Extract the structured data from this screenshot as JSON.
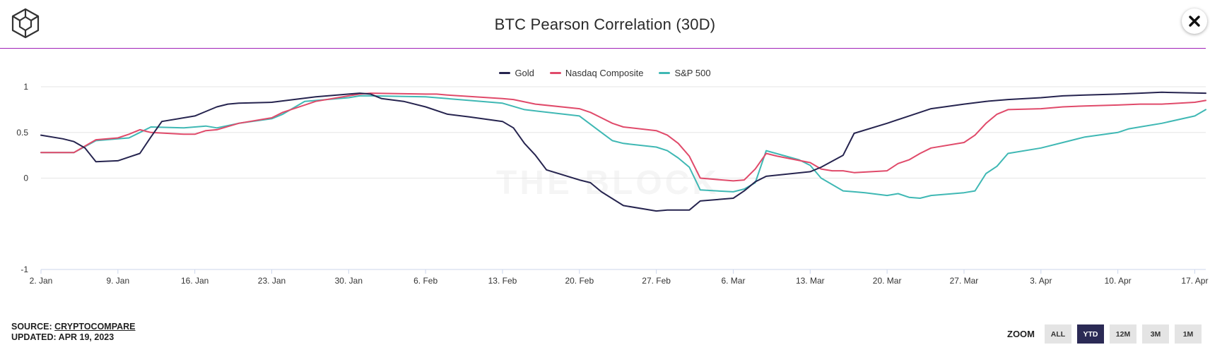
{
  "header": {
    "title": "BTC Pearson Correlation (30D)",
    "rule_color": "#a020b8"
  },
  "icons": {
    "logo": "the-block-cube-logo",
    "close": "close-x-icon"
  },
  "watermark": "THE BLOCK",
  "footer": {
    "source_label": "SOURCE:",
    "source_link": "CRYPTOCOMPARE",
    "updated": "UPDATED: APR 19, 2023"
  },
  "zoom": {
    "label": "ZOOM",
    "buttons": [
      "ALL",
      "YTD",
      "12M",
      "3M",
      "1M"
    ],
    "active": "YTD"
  },
  "chart_data": {
    "type": "line",
    "title": "BTC Pearson Correlation (30D)",
    "ylim": [
      -1,
      1
    ],
    "yticks": [
      1,
      0.5,
      0,
      -1
    ],
    "ytick_labels": [
      "1",
      "0.5",
      "0",
      "-1"
    ],
    "xlim": [
      "2023-01-02",
      "2023-04-18"
    ],
    "xticks": [
      "2023-01-02",
      "2023-01-09",
      "2023-01-16",
      "2023-01-23",
      "2023-01-30",
      "2023-02-06",
      "2023-02-13",
      "2023-02-20",
      "2023-02-27",
      "2023-03-06",
      "2023-03-13",
      "2023-03-20",
      "2023-03-27",
      "2023-04-03",
      "2023-04-10",
      "2023-04-17"
    ],
    "xtick_labels": [
      "2. Jan",
      "9. Jan",
      "16. Jan",
      "23. Jan",
      "30. Jan",
      "6. Feb",
      "13. Feb",
      "20. Feb",
      "27. Feb",
      "6. Mar",
      "13. Mar",
      "20. Mar",
      "27. Mar",
      "3. Apr",
      "10. Apr",
      "17. Apr"
    ],
    "legend_position": "top-center",
    "grid": "horizontal",
    "series": [
      {
        "name": "Gold",
        "color": "#26244f",
        "x": [
          "2023-01-02",
          "2023-01-04",
          "2023-01-05",
          "2023-01-06",
          "2023-01-07",
          "2023-01-09",
          "2023-01-10",
          "2023-01-11",
          "2023-01-12",
          "2023-01-13",
          "2023-01-16",
          "2023-01-17",
          "2023-01-18",
          "2023-01-19",
          "2023-01-20",
          "2023-01-23",
          "2023-01-25",
          "2023-01-27",
          "2023-01-30",
          "2023-01-31",
          "2023-02-01",
          "2023-02-02",
          "2023-02-04",
          "2023-02-06",
          "2023-02-08",
          "2023-02-10",
          "2023-02-13",
          "2023-02-14",
          "2023-02-15",
          "2023-02-16",
          "2023-02-17",
          "2023-02-20",
          "2023-02-21",
          "2023-02-22",
          "2023-02-24",
          "2023-02-27",
          "2023-02-28",
          "2023-03-02",
          "2023-03-03",
          "2023-03-06",
          "2023-03-07",
          "2023-03-08",
          "2023-03-09",
          "2023-03-13",
          "2023-03-14",
          "2023-03-16",
          "2023-03-17",
          "2023-03-20",
          "2023-03-22",
          "2023-03-24",
          "2023-03-27",
          "2023-03-29",
          "2023-03-31",
          "2023-04-03",
          "2023-04-05",
          "2023-04-07",
          "2023-04-10",
          "2023-04-12",
          "2023-04-14",
          "2023-04-18"
        ],
        "y": [
          0.47,
          0.43,
          0.4,
          0.33,
          0.18,
          0.19,
          0.23,
          0.27,
          0.45,
          0.62,
          0.68,
          0.73,
          0.78,
          0.81,
          0.82,
          0.83,
          0.86,
          0.89,
          0.92,
          0.93,
          0.92,
          0.87,
          0.84,
          0.78,
          0.7,
          0.67,
          0.62,
          0.55,
          0.38,
          0.25,
          0.09,
          -0.02,
          -0.05,
          -0.15,
          -0.3,
          -0.36,
          -0.35,
          -0.35,
          -0.25,
          -0.22,
          -0.14,
          -0.04,
          0.02,
          0.07,
          0.12,
          0.25,
          0.49,
          0.6,
          0.68,
          0.76,
          0.81,
          0.84,
          0.86,
          0.88,
          0.9,
          0.91,
          0.92,
          0.93,
          0.94,
          0.93
        ]
      },
      {
        "name": "Nasdaq Composite",
        "color": "#e04a6a",
        "x": [
          "2023-01-02",
          "2023-01-05",
          "2023-01-07",
          "2023-01-09",
          "2023-01-10",
          "2023-01-11",
          "2023-01-12",
          "2023-01-15",
          "2023-01-16",
          "2023-01-17",
          "2023-01-18",
          "2023-01-20",
          "2023-01-23",
          "2023-01-24",
          "2023-01-27",
          "2023-01-30",
          "2023-01-31",
          "2023-02-01",
          "2023-02-06",
          "2023-02-07",
          "2023-02-08",
          "2023-02-13",
          "2023-02-14",
          "2023-02-16",
          "2023-02-20",
          "2023-02-21",
          "2023-02-22",
          "2023-02-23",
          "2023-02-24",
          "2023-02-27",
          "2023-02-28",
          "2023-03-01",
          "2023-03-02",
          "2023-03-03",
          "2023-03-06",
          "2023-03-07",
          "2023-03-08",
          "2023-03-09",
          "2023-03-10",
          "2023-03-13",
          "2023-03-14",
          "2023-03-15",
          "2023-03-16",
          "2023-03-17",
          "2023-03-20",
          "2023-03-21",
          "2023-03-22",
          "2023-03-23",
          "2023-03-24",
          "2023-03-27",
          "2023-03-28",
          "2023-03-29",
          "2023-03-30",
          "2023-03-31",
          "2023-04-03",
          "2023-04-05",
          "2023-04-07",
          "2023-04-10",
          "2023-04-12",
          "2023-04-14",
          "2023-04-17",
          "2023-04-18"
        ],
        "y": [
          0.28,
          0.28,
          0.42,
          0.44,
          0.48,
          0.53,
          0.5,
          0.48,
          0.48,
          0.52,
          0.53,
          0.6,
          0.66,
          0.72,
          0.84,
          0.9,
          0.92,
          0.93,
          0.92,
          0.92,
          0.91,
          0.87,
          0.86,
          0.81,
          0.76,
          0.72,
          0.66,
          0.6,
          0.56,
          0.52,
          0.47,
          0.38,
          0.24,
          0.0,
          -0.03,
          -0.02,
          0.1,
          0.27,
          0.24,
          0.17,
          0.1,
          0.08,
          0.08,
          0.06,
          0.08,
          0.16,
          0.2,
          0.27,
          0.33,
          0.39,
          0.47,
          0.6,
          0.7,
          0.75,
          0.76,
          0.78,
          0.79,
          0.8,
          0.81,
          0.81,
          0.83,
          0.85
        ]
      },
      {
        "name": "S&P 500",
        "color": "#3fb8b4",
        "x": [
          "2023-01-02",
          "2023-01-05",
          "2023-01-07",
          "2023-01-09",
          "2023-01-10",
          "2023-01-11",
          "2023-01-12",
          "2023-01-15",
          "2023-01-16",
          "2023-01-17",
          "2023-01-18",
          "2023-01-20",
          "2023-01-23",
          "2023-01-24",
          "2023-01-26",
          "2023-01-30",
          "2023-01-31",
          "2023-02-01",
          "2023-02-06",
          "2023-02-08",
          "2023-02-10",
          "2023-02-13",
          "2023-02-15",
          "2023-02-20",
          "2023-02-22",
          "2023-02-23",
          "2023-02-24",
          "2023-02-27",
          "2023-02-28",
          "2023-03-01",
          "2023-03-02",
          "2023-03-03",
          "2023-03-06",
          "2023-03-07",
          "2023-03-08",
          "2023-03-09",
          "2023-03-12",
          "2023-03-13",
          "2023-03-14",
          "2023-03-16",
          "2023-03-17",
          "2023-03-18",
          "2023-03-20",
          "2023-03-21",
          "2023-03-22",
          "2023-03-23",
          "2023-03-24",
          "2023-03-27",
          "2023-03-28",
          "2023-03-29",
          "2023-03-30",
          "2023-03-31",
          "2023-04-03",
          "2023-04-05",
          "2023-04-07",
          "2023-04-10",
          "2023-04-11",
          "2023-04-12",
          "2023-04-14",
          "2023-04-17",
          "2023-04-18"
        ],
        "y": [
          0.28,
          0.28,
          0.41,
          0.43,
          0.44,
          0.5,
          0.56,
          0.55,
          0.56,
          0.57,
          0.55,
          0.6,
          0.65,
          0.7,
          0.84,
          0.88,
          0.9,
          0.9,
          0.89,
          0.87,
          0.85,
          0.82,
          0.75,
          0.68,
          0.5,
          0.41,
          0.38,
          0.34,
          0.3,
          0.22,
          0.12,
          -0.13,
          -0.15,
          -0.12,
          -0.05,
          0.3,
          0.2,
          0.14,
          0.0,
          -0.14,
          -0.15,
          -0.16,
          -0.19,
          -0.17,
          -0.21,
          -0.22,
          -0.19,
          -0.16,
          -0.14,
          0.05,
          0.13,
          0.27,
          0.33,
          0.39,
          0.45,
          0.5,
          0.54,
          0.56,
          0.6,
          0.68,
          0.75
        ]
      }
    ]
  }
}
